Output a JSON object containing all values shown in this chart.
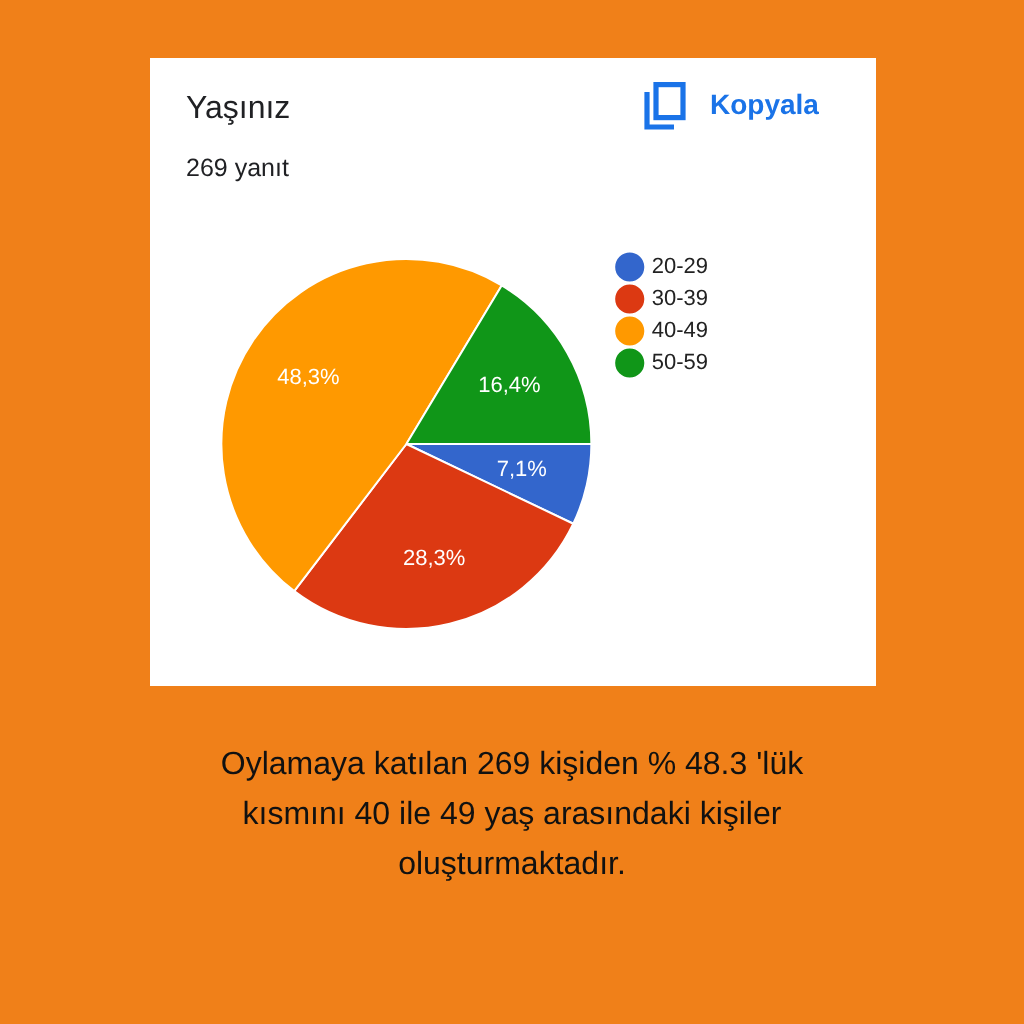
{
  "chart_data": {
    "type": "pie",
    "title": "Yaşınız",
    "subtitle": "269 yanıt",
    "categories": [
      "20-29",
      "30-39",
      "40-49",
      "50-59"
    ],
    "values": [
      7.1,
      28.3,
      48.3,
      16.4
    ],
    "colors": [
      "#3366cc",
      "#dc3912",
      "#ff9900",
      "#109618"
    ],
    "value_labels": [
      "7,1%",
      "28,3%",
      "48,3%",
      "16,4%"
    ],
    "legend": "top right",
    "annotations": [
      "Kopyala",
      "Oylamaya katılan 269 kişiden % 48.3 'lük kısmını 40 ile 49 yaş arasındaki kişiler oluşturmaktadır."
    ]
  }
}
